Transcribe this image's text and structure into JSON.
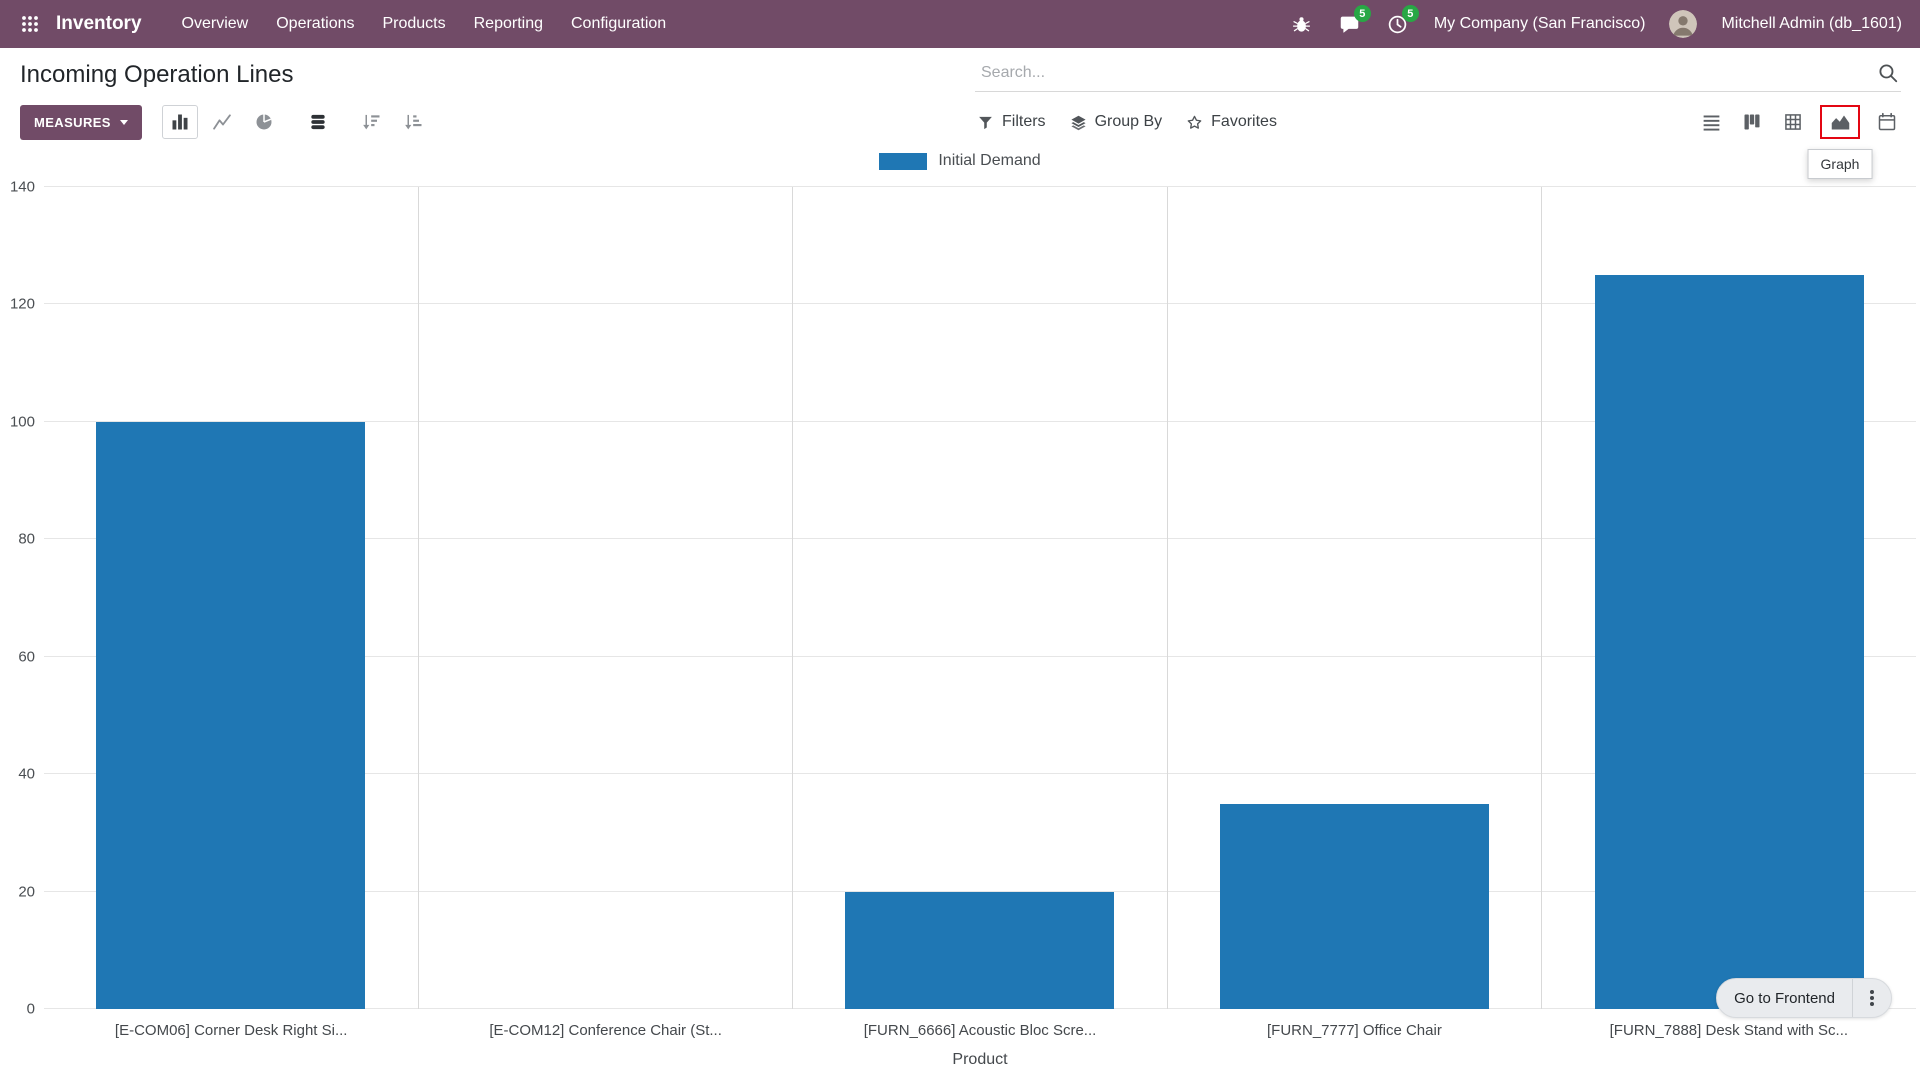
{
  "navbar": {
    "app_name": "Inventory",
    "menu_items": [
      {
        "label": "Overview"
      },
      {
        "label": "Operations"
      },
      {
        "label": "Products"
      },
      {
        "label": "Reporting"
      },
      {
        "label": "Configuration"
      }
    ],
    "messages_badge": "5",
    "activities_badge": "5",
    "company": "My Company (San Francisco)",
    "user": "Mitchell Admin (db_1601)"
  },
  "header": {
    "title": "Incoming Operation Lines",
    "search_placeholder": "Search..."
  },
  "control_panel": {
    "measures_label": "MEASURES",
    "chart_toolbar": {
      "types": [
        "bar",
        "line",
        "pie"
      ],
      "active_type": "bar",
      "stacked": true,
      "sort_buttons": [
        "desc",
        "asc"
      ]
    },
    "filters_label": "Filters",
    "group_by_label": "Group By",
    "favorites_label": "Favorites",
    "view_switcher": {
      "views": [
        "list",
        "kanban",
        "pivot",
        "graph",
        "calendar"
      ],
      "active": "graph"
    },
    "graph_tooltip": "Graph"
  },
  "footer": {
    "go_to_frontend_label": "Go to Frontend"
  },
  "colors": {
    "navbar_bg": "#714B67",
    "accent": "#714B67",
    "bar": "#1f77b4",
    "badge_green": "#28a745",
    "highlight_red": "#e30613"
  },
  "chart_data": {
    "type": "bar",
    "title": "Incoming Operation Lines",
    "legend": [
      "Initial Demand"
    ],
    "categories": [
      "[E-COM06] Corner Desk Right Si...",
      "[E-COM12] Conference Chair (St...",
      "[FURN_6666] Acoustic Bloc Scre...",
      "[FURN_7777] Office Chair",
      "[FURN_7888] Desk Stand with Sc..."
    ],
    "series": [
      {
        "name": "Initial Demand",
        "values": [
          100,
          0,
          20,
          35,
          125
        ]
      }
    ],
    "xlabel": "Product",
    "ylabel": "",
    "ylim": [
      0,
      140
    ],
    "yticks": [
      0,
      20,
      40,
      60,
      80,
      100,
      120,
      140
    ],
    "grid": true,
    "legend_position": "top"
  }
}
